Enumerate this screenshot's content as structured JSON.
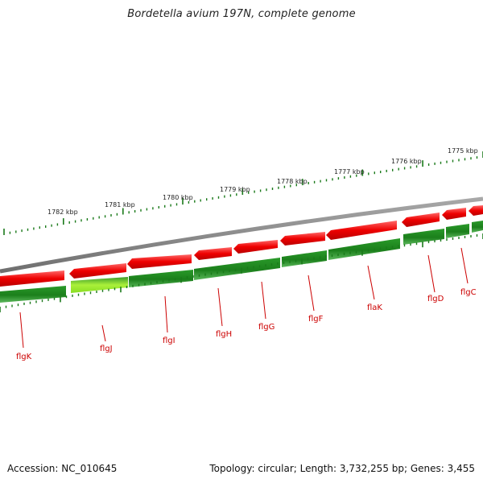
{
  "title": "Bordetella avium 197N, complete genome",
  "footer": {
    "accession": "Accession: NC_010645",
    "summary": "Topology: circular; Length: 3,732,255 bp; Genes: 3,455"
  },
  "ruler_labels": [
    "1782 kbp",
    "1781 kbp",
    "1780 kbp",
    "1779 kbp",
    "1778 kbp",
    "1777 kbp",
    "1776 kbp",
    "1775 kbp"
  ],
  "gene_labels": [
    "flgK",
    "flgJ",
    "flgI",
    "flgH",
    "flgG",
    "flgF",
    "flaK",
    "flgD",
    "flgC"
  ],
  "colors": {
    "backbone": "#8a8a8a",
    "forward_gene": "#ee0000",
    "reverse_gene": "#1f8a1f",
    "highlight_gene": "#99ee22",
    "tick": "#1a7a1a",
    "label": "#cc0000"
  }
}
